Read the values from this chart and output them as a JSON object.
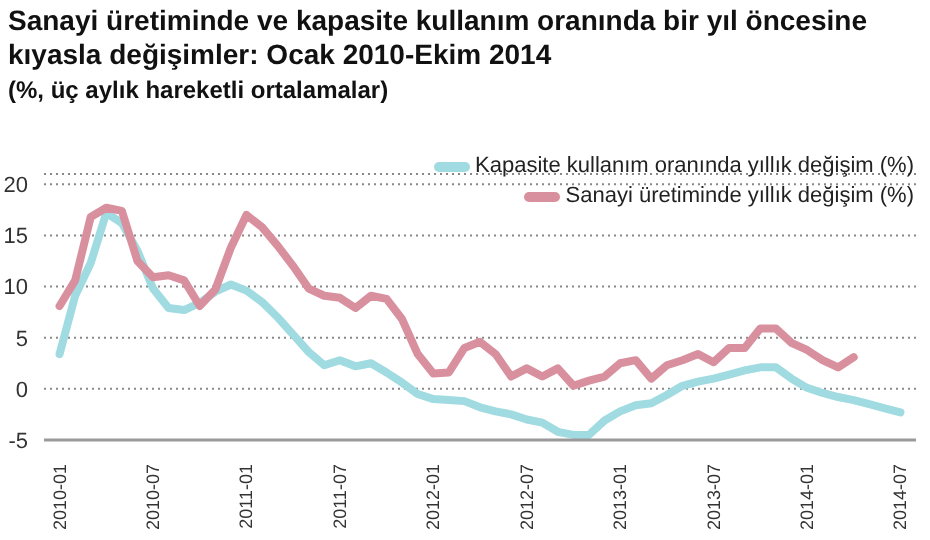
{
  "chart_data": {
    "type": "line",
    "title": "Sanayi üretiminde ve kapasite kullanım oranında bir yıl öncesine kıyasla değişimler: Ocak 2010-Ekim 2014",
    "subtitle": "(%, üç aylık hareketli ortalamalar)",
    "x": [
      "2010-01",
      "2010-02",
      "2010-03",
      "2010-04",
      "2010-05",
      "2010-06",
      "2010-07",
      "2010-08",
      "2010-09",
      "2010-10",
      "2010-11",
      "2010-12",
      "2011-01",
      "2011-02",
      "2011-03",
      "2011-04",
      "2011-05",
      "2011-06",
      "2011-07",
      "2011-08",
      "2011-09",
      "2011-10",
      "2011-11",
      "2011-12",
      "2012-01",
      "2012-02",
      "2012-03",
      "2012-04",
      "2012-05",
      "2012-06",
      "2012-07",
      "2012-08",
      "2012-09",
      "2012-10",
      "2012-11",
      "2012-12",
      "2013-01",
      "2013-02",
      "2013-03",
      "2013-04",
      "2013-05",
      "2013-06",
      "2013-07",
      "2013-08",
      "2013-09",
      "2013-10",
      "2013-11",
      "2013-12",
      "2014-01",
      "2014-02",
      "2014-03",
      "2014-04",
      "2014-05",
      "2014-06",
      "2014-07"
    ],
    "series": [
      {
        "name": "Kapasite kullanım oranında yıllık değişim (%)",
        "color": "#9fdbe0",
        "values": [
          3.4,
          9.1,
          12.3,
          17.2,
          16.2,
          13.5,
          9.8,
          7.9,
          7.7,
          8.4,
          9.5,
          10.2,
          9.6,
          8.5,
          7,
          5.3,
          3.6,
          2.3,
          2.8,
          2.2,
          2.5,
          1.6,
          0.6,
          -0.5,
          -1,
          -1.1,
          -1.2,
          -1.8,
          -2.2,
          -2.5,
          -3,
          -3.3,
          -4.2,
          -4.5,
          -4.5,
          -3.1,
          -2.2,
          -1.6,
          -1.4,
          -0.6,
          0.3,
          0.7,
          1,
          1.4,
          1.8,
          2.1,
          2.1,
          1,
          0.1,
          -0.4,
          -0.8,
          -1.1,
          -1.5,
          -1.9,
          -2.3
        ]
      },
      {
        "name": "Sanayi üretiminde yıllık değişim (%)",
        "color": "#d9909e",
        "values": [
          8.1,
          10.6,
          16.8,
          17.7,
          17.4,
          12.5,
          10.9,
          11.1,
          10.6,
          8.1,
          9.7,
          13.8,
          17,
          15.8,
          14,
          12,
          9.8,
          9.1,
          8.9,
          7.9,
          9.1,
          8.8,
          6.8,
          3.4,
          1.5,
          1.6,
          4,
          4.6,
          3.4,
          1.2,
          2,
          1.2,
          2,
          0.3,
          0.8,
          1.2,
          2.5,
          2.8,
          1,
          2.3,
          2.8,
          3.4,
          2.6,
          4,
          4,
          5.9,
          5.9,
          4.5,
          3.8,
          2.8,
          2.1,
          3.1,
          null,
          null,
          null
        ]
      }
    ],
    "xlim": [
      "2009-12",
      "2014-08"
    ],
    "xticks": [
      "2010-01",
      "2010-07",
      "2011-01",
      "2011-07",
      "2012-01",
      "2012-07",
      "2013-01",
      "2013-07",
      "2014-01",
      "2014-07"
    ],
    "ylim": [
      -5,
      21
    ],
    "yticks": [
      -5,
      0,
      5,
      10,
      15,
      20
    ],
    "grid": "y",
    "legend": "top right",
    "marker": "none",
    "line_style": "solid"
  }
}
